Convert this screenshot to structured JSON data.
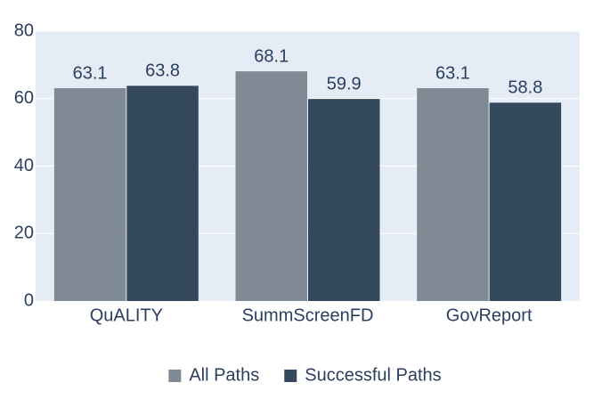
{
  "chart_data": {
    "type": "bar",
    "categories": [
      "QuALITY",
      "SummScreenFD",
      "GovReport"
    ],
    "series": [
      {
        "name": "All Paths",
        "color": "#7f8a94",
        "values": [
          63.1,
          68.1,
          63.1
        ]
      },
      {
        "name": "Successful Paths",
        "color": "#34495e",
        "values": [
          63.8,
          59.9,
          58.8
        ]
      }
    ],
    "ylim": [
      0,
      80
    ],
    "yticks": [
      0,
      20,
      40,
      60,
      80
    ],
    "grid": true,
    "legend": "bottom"
  }
}
